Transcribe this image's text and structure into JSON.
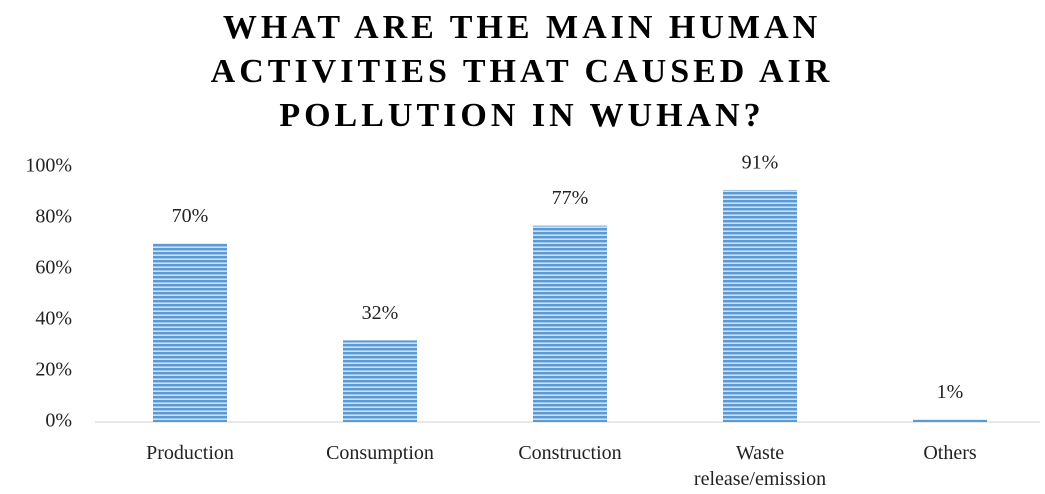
{
  "chart_data": {
    "type": "bar",
    "title": "WHAT ARE THE MAIN HUMAN ACTIVITIES THAT CAUSED AIR POLLUTION IN WUHAN?",
    "categories": [
      "Production",
      "Consumption",
      "Construction",
      "Waste release/emission",
      "Others"
    ],
    "values": [
      70,
      32,
      77,
      91,
      1
    ],
    "value_labels": [
      "70%",
      "32%",
      "77%",
      "91%",
      "1%"
    ],
    "color": "#5b9bd5",
    "ylim": [
      0,
      100
    ],
    "yticks": [
      {
        "value": 0,
        "label": "0%"
      },
      {
        "value": 20,
        "label": "20%"
      },
      {
        "value": 40,
        "label": "40%"
      },
      {
        "value": 60,
        "label": "60%"
      },
      {
        "value": 80,
        "label": "80%"
      },
      {
        "value": 100,
        "label": "100%"
      }
    ],
    "grid": false
  }
}
